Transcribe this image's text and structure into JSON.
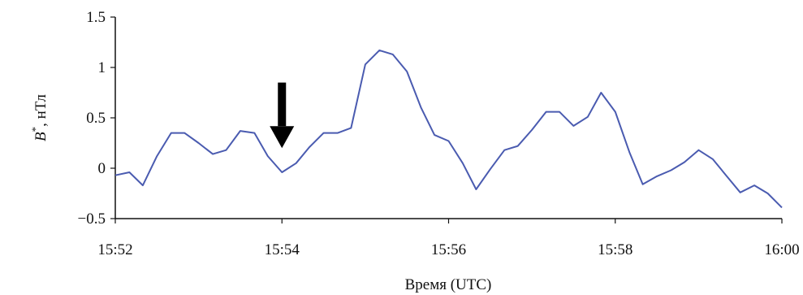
{
  "chart_data": {
    "type": "line",
    "title": "",
    "xlabel": "Время (UTC)",
    "ylabel": {
      "symbol": "B",
      "superscript": "*",
      "unit": ", нТл"
    },
    "x_ticks": [
      "15:52",
      "15:54",
      "15:56",
      "15:58",
      "16:00"
    ],
    "x_range_minutes": [
      0,
      8
    ],
    "ylim": [
      -0.5,
      1.5
    ],
    "y_ticks": [
      "1.5",
      "1",
      "0.5",
      "0",
      "−0.5"
    ],
    "y_tick_values": [
      1.5,
      1,
      0.5,
      0,
      -0.5
    ],
    "grid": false,
    "series": [
      {
        "color": "#4a5bb0",
        "points": [
          [
            0.0,
            -0.07
          ],
          [
            0.17,
            -0.04
          ],
          [
            0.33,
            -0.17
          ],
          [
            0.5,
            0.12
          ],
          [
            0.67,
            0.35
          ],
          [
            0.83,
            0.35
          ],
          [
            1.0,
            0.25
          ],
          [
            1.17,
            0.14
          ],
          [
            1.33,
            0.18
          ],
          [
            1.5,
            0.37
          ],
          [
            1.67,
            0.35
          ],
          [
            1.83,
            0.12
          ],
          [
            2.0,
            -0.04
          ],
          [
            2.17,
            0.05
          ],
          [
            2.33,
            0.21
          ],
          [
            2.5,
            0.35
          ],
          [
            2.67,
            0.35
          ],
          [
            2.83,
            0.4
          ],
          [
            3.0,
            1.03
          ],
          [
            3.17,
            1.17
          ],
          [
            3.33,
            1.13
          ],
          [
            3.5,
            0.96
          ],
          [
            3.67,
            0.6
          ],
          [
            3.83,
            0.33
          ],
          [
            4.0,
            0.27
          ],
          [
            4.17,
            0.05
          ],
          [
            4.33,
            -0.21
          ],
          [
            4.5,
            -0.01
          ],
          [
            4.67,
            0.18
          ],
          [
            4.83,
            0.22
          ],
          [
            5.0,
            0.38
          ],
          [
            5.17,
            0.56
          ],
          [
            5.33,
            0.56
          ],
          [
            5.5,
            0.42
          ],
          [
            5.67,
            0.51
          ],
          [
            5.83,
            0.75
          ],
          [
            6.0,
            0.56
          ],
          [
            6.17,
            0.16
          ],
          [
            6.33,
            -0.16
          ],
          [
            6.5,
            -0.08
          ],
          [
            6.67,
            -0.02
          ],
          [
            6.83,
            0.06
          ],
          [
            7.0,
            0.18
          ],
          [
            7.17,
            0.09
          ],
          [
            7.33,
            -0.07
          ],
          [
            7.5,
            -0.24
          ],
          [
            7.67,
            -0.17
          ],
          [
            7.83,
            -0.25
          ],
          [
            8.0,
            -0.39
          ]
        ]
      }
    ],
    "annotations": [
      {
        "type": "arrow",
        "direction": "down",
        "x": 2.0,
        "y_from": 0.85,
        "y_to": 0.2,
        "color": "#000000"
      }
    ]
  }
}
